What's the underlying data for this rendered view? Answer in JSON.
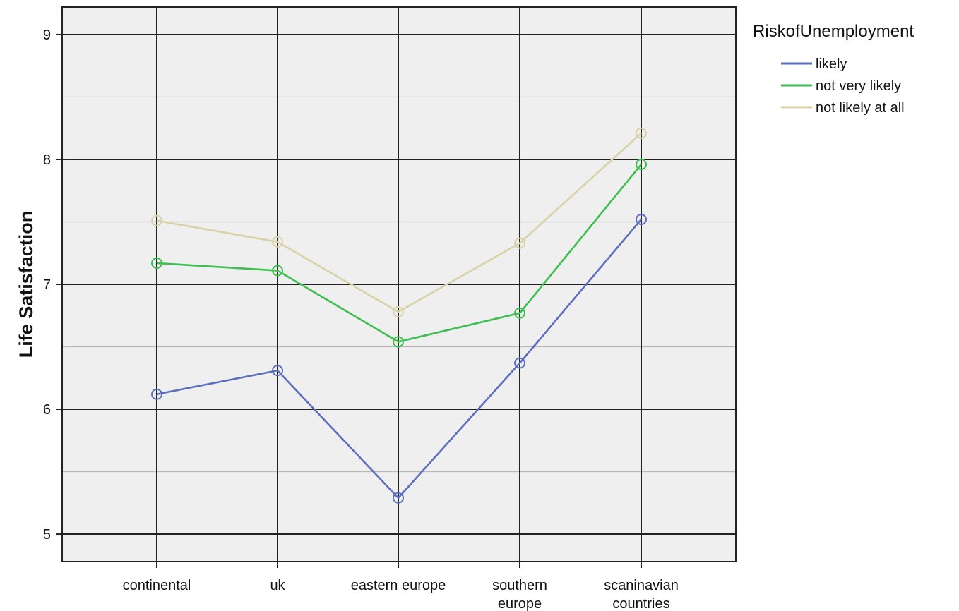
{
  "chart_data": {
    "type": "line",
    "title": "",
    "xlabel": "",
    "ylabel": "Life Satisfaction",
    "categories": [
      [
        "continental"
      ],
      [
        "uk"
      ],
      [
        "eastern europe"
      ],
      [
        "southern",
        "europe"
      ],
      [
        "scaninavian",
        "countries"
      ]
    ],
    "ylim": [
      4.78,
      9.22
    ],
    "yticks": [
      5,
      6,
      7,
      8,
      9
    ],
    "minor_yticks": [
      5.5,
      6.5,
      7.5,
      8.5
    ],
    "grid": true,
    "markers": "circle",
    "legend": {
      "title": "RiskofUnemployment",
      "placement": "top-right outside"
    },
    "series": [
      {
        "name": "likely",
        "color": "#5b6fbe",
        "values": [
          6.12,
          6.31,
          5.29,
          6.37,
          7.52
        ]
      },
      {
        "name": "not very likely",
        "color": "#3cbf4e",
        "values": [
          7.17,
          7.11,
          6.54,
          6.77,
          7.96
        ]
      },
      {
        "name": "not likely at all",
        "color": "#d8d2a6",
        "values": [
          7.51,
          7.34,
          6.78,
          7.33,
          8.21
        ]
      }
    ],
    "colors": {
      "plot_background": "#efefef",
      "major_grid": "#222222",
      "minor_grid": "#b8b8b8"
    }
  }
}
